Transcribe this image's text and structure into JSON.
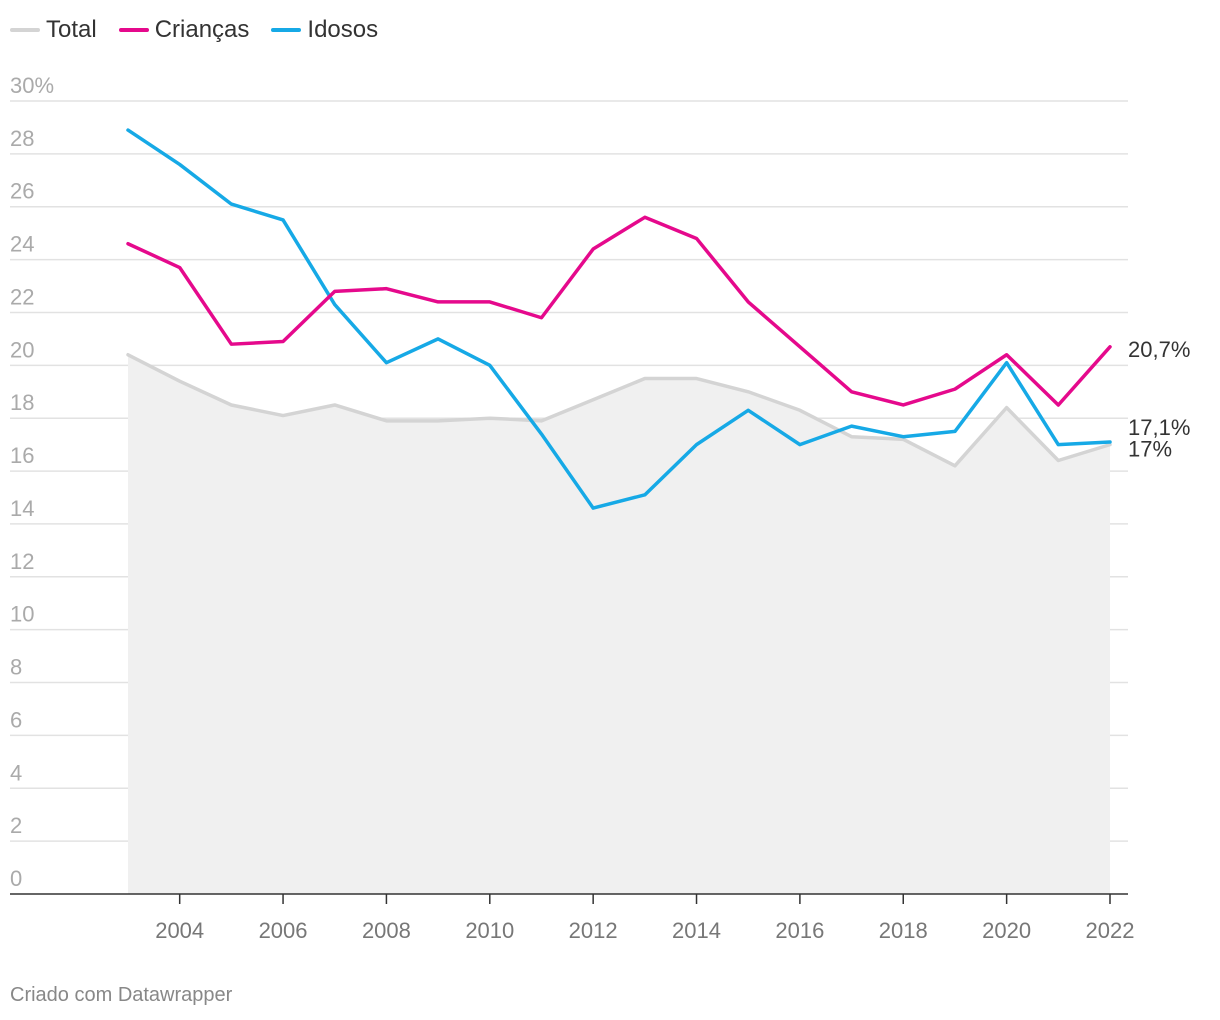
{
  "legend": [
    {
      "name": "Total",
      "color": "#d4d4d4"
    },
    {
      "name": "Crianças",
      "color": "#e5098c"
    },
    {
      "name": "Idosos",
      "color": "#16a9e6"
    }
  ],
  "footer": {
    "credit": "Criado com Datawrapper"
  },
  "chart_data": {
    "type": "line",
    "title": "",
    "xlabel": "",
    "ylabel": "",
    "x": [
      2003,
      2004,
      2005,
      2006,
      2007,
      2008,
      2009,
      2010,
      2011,
      2012,
      2013,
      2014,
      2015,
      2016,
      2017,
      2018,
      2019,
      2020,
      2021,
      2022
    ],
    "xlim": [
      2003,
      2022
    ],
    "ylim": [
      0,
      30
    ],
    "y_ticks": [
      {
        "value": 30,
        "label": "30%"
      },
      {
        "value": 28,
        "label": "28"
      },
      {
        "value": 26,
        "label": "26"
      },
      {
        "value": 24,
        "label": "24"
      },
      {
        "value": 22,
        "label": "22"
      },
      {
        "value": 20,
        "label": "20"
      },
      {
        "value": 18,
        "label": "18"
      },
      {
        "value": 16,
        "label": "16"
      },
      {
        "value": 14,
        "label": "14"
      },
      {
        "value": 12,
        "label": "12"
      },
      {
        "value": 10,
        "label": "10"
      },
      {
        "value": 8,
        "label": "8"
      },
      {
        "value": 6,
        "label": "6"
      },
      {
        "value": 4,
        "label": "4"
      },
      {
        "value": 2,
        "label": "2"
      },
      {
        "value": 0,
        "label": "0"
      }
    ],
    "x_ticks": [
      {
        "value": 2004,
        "label": "2004"
      },
      {
        "value": 2006,
        "label": "2006"
      },
      {
        "value": 2008,
        "label": "2008"
      },
      {
        "value": 2010,
        "label": "2010"
      },
      {
        "value": 2012,
        "label": "2012"
      },
      {
        "value": 2014,
        "label": "2014"
      },
      {
        "value": 2016,
        "label": "2016"
      },
      {
        "value": 2018,
        "label": "2018"
      },
      {
        "value": 2020,
        "label": "2020"
      },
      {
        "value": 2022,
        "label": "2022"
      }
    ],
    "grid": true,
    "series": [
      {
        "name": "Total",
        "color": "#d4d4d4",
        "area": true,
        "area_color": "#f0f0f0",
        "values": [
          20.4,
          19.4,
          18.5,
          18.1,
          18.5,
          17.9,
          17.9,
          18.0,
          17.9,
          18.7,
          19.5,
          19.5,
          19.0,
          18.3,
          17.3,
          17.2,
          16.2,
          18.4,
          16.4,
          17.0
        ],
        "end_label": "17%"
      },
      {
        "name": "Idosos",
        "color": "#16a9e6",
        "area": false,
        "values": [
          28.9,
          27.6,
          26.1,
          25.5,
          22.3,
          20.1,
          21.0,
          20.0,
          17.4,
          14.6,
          15.1,
          17.0,
          18.3,
          17.0,
          17.7,
          17.3,
          17.5,
          20.1,
          17.0,
          17.1
        ],
        "end_label": "17,1%"
      },
      {
        "name": "Crianças",
        "color": "#e5098c",
        "area": false,
        "values": [
          24.6,
          23.7,
          20.8,
          20.9,
          22.8,
          22.9,
          22.4,
          22.4,
          21.8,
          24.4,
          25.6,
          24.8,
          22.4,
          20.7,
          19.0,
          18.5,
          19.1,
          20.4,
          18.5,
          20.7
        ],
        "end_label": "20,7%"
      }
    ]
  }
}
